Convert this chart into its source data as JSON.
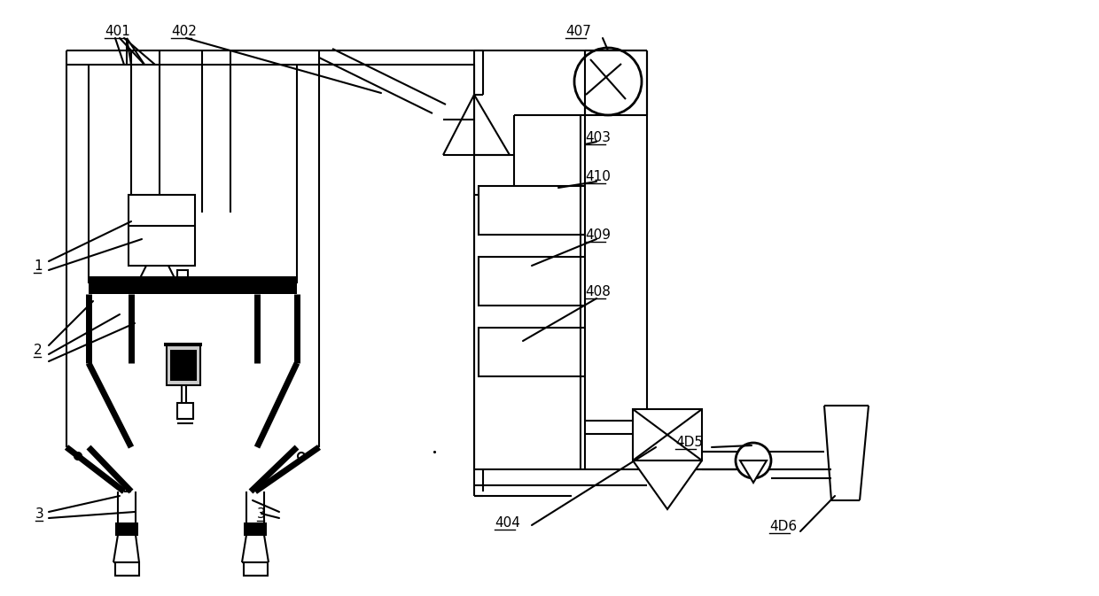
{
  "bg_color": "#ffffff",
  "lc": "#000000",
  "lw": 1.5,
  "lw2": 2.0,
  "lw_thick": 5.0,
  "labels": [
    [
      "401",
      118,
      28
    ],
    [
      "402",
      193,
      28
    ],
    [
      "407",
      638,
      28
    ],
    [
      "403",
      660,
      148
    ],
    [
      "410",
      660,
      192
    ],
    [
      "409",
      660,
      258
    ],
    [
      "408",
      660,
      322
    ],
    [
      "404",
      558,
      583
    ],
    [
      "4D5",
      762,
      492
    ],
    [
      "4D6",
      868,
      587
    ],
    [
      "1",
      38,
      293
    ],
    [
      "2",
      38,
      388
    ],
    [
      "3",
      40,
      573
    ],
    [
      "3",
      290,
      573
    ]
  ]
}
